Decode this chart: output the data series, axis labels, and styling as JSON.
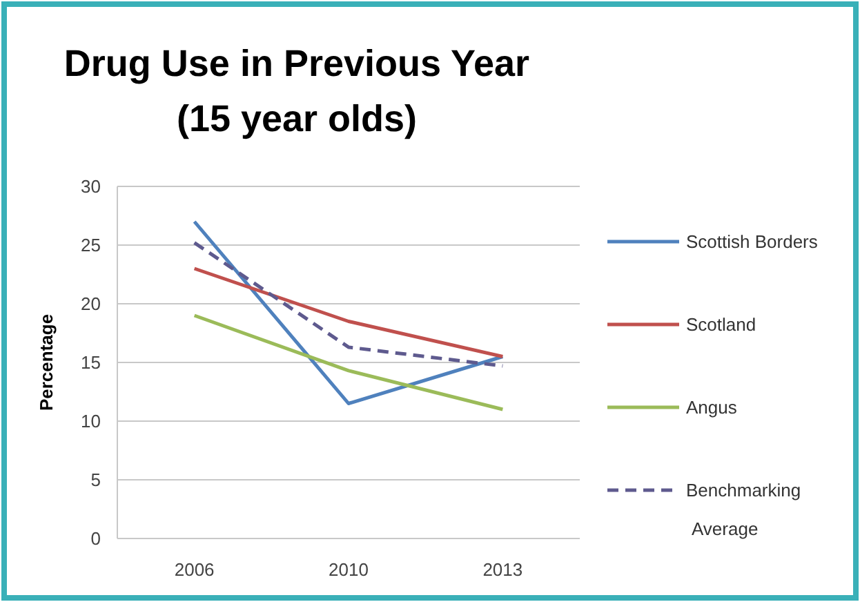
{
  "chart_data": {
    "type": "line",
    "title": "Drug  Use in Previous Year\n(15 year olds)",
    "ylabel": "Percentage",
    "categories": [
      "2006",
      "2010",
      "2013"
    ],
    "series": [
      {
        "name": "Scottish Borders",
        "color": "#4f81bd",
        "values": [
          27,
          11.5,
          15.5
        ]
      },
      {
        "name": "Scotland",
        "color": "#c0504d",
        "values": [
          23,
          18.5,
          15.5
        ]
      },
      {
        "name": "Angus",
        "color": "#9bbb59",
        "values": [
          19,
          14.3,
          11
        ]
      },
      {
        "name": "Benchmarking Average",
        "color": "#5e5a8e",
        "values": [
          25.2,
          16.3,
          14.7
        ],
        "line_style": "dashed"
      }
    ],
    "ylim": [
      0,
      30
    ],
    "yticks": [
      0,
      5,
      10,
      15,
      20,
      25,
      30
    ],
    "grid": "y",
    "legend": "right",
    "marker": "none"
  }
}
